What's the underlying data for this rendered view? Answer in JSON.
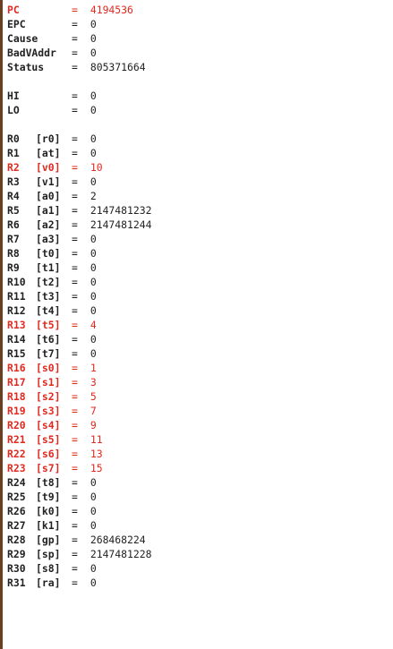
{
  "colors": {
    "normal": "#222222",
    "changed": "#e0291f",
    "edge": "#6b3f1e"
  },
  "equals": "=",
  "special": [
    {
      "name": "PC",
      "value": "4194536",
      "changed": true
    },
    {
      "name": "EPC",
      "value": "0",
      "changed": false
    },
    {
      "name": "Cause",
      "value": "0",
      "changed": false
    },
    {
      "name": "BadVAddr",
      "value": "0",
      "changed": false
    },
    {
      "name": "Status",
      "value": "805371664",
      "changed": false
    }
  ],
  "hilo": [
    {
      "name": "HI",
      "value": "0",
      "changed": false
    },
    {
      "name": "LO",
      "value": "0",
      "changed": false
    }
  ],
  "registers": [
    {
      "name": "R0",
      "alias": "[r0]",
      "value": "0",
      "changed": false
    },
    {
      "name": "R1",
      "alias": "[at]",
      "value": "0",
      "changed": false
    },
    {
      "name": "R2",
      "alias": "[v0]",
      "value": "10",
      "changed": true
    },
    {
      "name": "R3",
      "alias": "[v1]",
      "value": "0",
      "changed": false
    },
    {
      "name": "R4",
      "alias": "[a0]",
      "value": "2",
      "changed": false
    },
    {
      "name": "R5",
      "alias": "[a1]",
      "value": "2147481232",
      "changed": false
    },
    {
      "name": "R6",
      "alias": "[a2]",
      "value": "2147481244",
      "changed": false
    },
    {
      "name": "R7",
      "alias": "[a3]",
      "value": "0",
      "changed": false
    },
    {
      "name": "R8",
      "alias": "[t0]",
      "value": "0",
      "changed": false
    },
    {
      "name": "R9",
      "alias": "[t1]",
      "value": "0",
      "changed": false
    },
    {
      "name": "R10",
      "alias": "[t2]",
      "value": "0",
      "changed": false
    },
    {
      "name": "R11",
      "alias": "[t3]",
      "value": "0",
      "changed": false
    },
    {
      "name": "R12",
      "alias": "[t4]",
      "value": "0",
      "changed": false
    },
    {
      "name": "R13",
      "alias": "[t5]",
      "value": "4",
      "changed": true
    },
    {
      "name": "R14",
      "alias": "[t6]",
      "value": "0",
      "changed": false
    },
    {
      "name": "R15",
      "alias": "[t7]",
      "value": "0",
      "changed": false
    },
    {
      "name": "R16",
      "alias": "[s0]",
      "value": "1",
      "changed": true
    },
    {
      "name": "R17",
      "alias": "[s1]",
      "value": "3",
      "changed": true
    },
    {
      "name": "R18",
      "alias": "[s2]",
      "value": "5",
      "changed": true
    },
    {
      "name": "R19",
      "alias": "[s3]",
      "value": "7",
      "changed": true
    },
    {
      "name": "R20",
      "alias": "[s4]",
      "value": "9",
      "changed": true
    },
    {
      "name": "R21",
      "alias": "[s5]",
      "value": "11",
      "changed": true
    },
    {
      "name": "R22",
      "alias": "[s6]",
      "value": "13",
      "changed": true
    },
    {
      "name": "R23",
      "alias": "[s7]",
      "value": "15",
      "changed": true
    },
    {
      "name": "R24",
      "alias": "[t8]",
      "value": "0",
      "changed": false
    },
    {
      "name": "R25",
      "alias": "[t9]",
      "value": "0",
      "changed": false
    },
    {
      "name": "R26",
      "alias": "[k0]",
      "value": "0",
      "changed": false
    },
    {
      "name": "R27",
      "alias": "[k1]",
      "value": "0",
      "changed": false
    },
    {
      "name": "R28",
      "alias": "[gp]",
      "value": "268468224",
      "changed": false
    },
    {
      "name": "R29",
      "alias": "[sp]",
      "value": "2147481228",
      "changed": false
    },
    {
      "name": "R30",
      "alias": "[s8]",
      "value": "0",
      "changed": false
    },
    {
      "name": "R31",
      "alias": "[ra]",
      "value": "0",
      "changed": false
    }
  ]
}
